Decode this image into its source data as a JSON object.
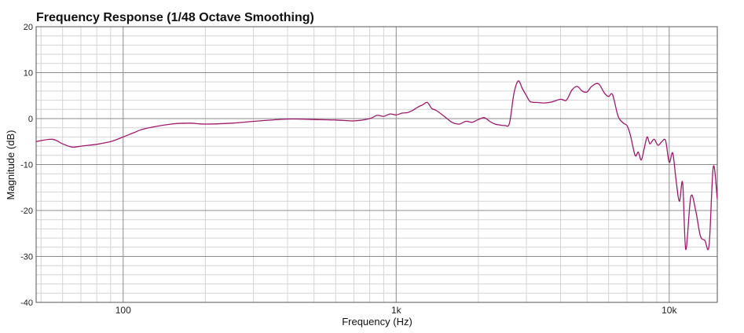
{
  "chart_data": {
    "type": "line",
    "title": "Frequency Response (1/48 Octave Smoothing)",
    "xlabel": "Frequency (Hz)",
    "ylabel": "Magnitude (dB)",
    "xscale": "log",
    "xlim": [
      48,
      15000
    ],
    "ylim": [
      -40,
      20
    ],
    "y_ticks": [
      20,
      10,
      0,
      -10,
      -20,
      -30,
      -40
    ],
    "x_ticks": [
      {
        "value": 100,
        "label": "100"
      },
      {
        "value": 1000,
        "label": "1k"
      },
      {
        "value": 10000,
        "label": "10k"
      }
    ],
    "grid": true,
    "legend": "none",
    "colors": {
      "line": "#a0176e",
      "grid_major": "#8c8c8c",
      "grid_minor": "#d4d4d4"
    },
    "series": [
      {
        "name": "",
        "x": [
          48,
          55,
          60,
          65,
          70,
          75,
          80,
          90,
          100,
          110,
          120,
          150,
          175,
          200,
          250,
          300,
          400,
          500,
          600,
          700,
          800,
          850,
          900,
          950,
          1000,
          1050,
          1100,
          1150,
          1200,
          1250,
          1300,
          1350,
          1400,
          1500,
          1600,
          1700,
          1800,
          1900,
          2000,
          2100,
          2200,
          2300,
          2400,
          2500,
          2600,
          2700,
          2800,
          2900,
          3000,
          3100,
          3300,
          3500,
          3700,
          4000,
          4200,
          4400,
          4600,
          4800,
          5000,
          5200,
          5500,
          5800,
          6000,
          6200,
          6500,
          6800,
          7000,
          7200,
          7500,
          7700,
          7900,
          8100,
          8300,
          8500,
          8800,
          9100,
          9400,
          9700,
          10000,
          10300,
          10600,
          10900,
          11200,
          11500,
          12000,
          12500,
          13000,
          13500,
          14000,
          14500,
          15000
        ],
        "y": [
          -5,
          -4.5,
          -5.5,
          -6.2,
          -6,
          -5.8,
          -5.6,
          -5,
          -4,
          -3,
          -2.2,
          -1.2,
          -1,
          -1.2,
          -1,
          -0.6,
          -0.1,
          -0.2,
          -0.3,
          -0.5,
          0,
          0.7,
          0.5,
          1,
          0.8,
          1.2,
          1.3,
          1.8,
          2.5,
          3,
          3.5,
          2.2,
          1.8,
          0.5,
          -0.8,
          -1.2,
          -0.6,
          -0.8,
          -0.2,
          0.2,
          -0.6,
          -1.2,
          -1.4,
          -1.5,
          -1,
          5.5,
          8.2,
          6.5,
          5,
          3.7,
          3.5,
          3.4,
          3.6,
          4.2,
          4,
          6.2,
          7,
          6,
          5.8,
          7,
          7.6,
          5.5,
          4.8,
          5.2,
          0.5,
          -1,
          -1.5,
          -3.5,
          -8,
          -7.3,
          -9,
          -6.5,
          -4,
          -5.5,
          -4.5,
          -5.8,
          -5,
          -4.8,
          -9.5,
          -7.5,
          -13.5,
          -18,
          -14,
          -28.5,
          -17,
          -20,
          -25.5,
          -26.5,
          -27.5,
          -10.5,
          -17.5
        ]
      }
    ]
  }
}
